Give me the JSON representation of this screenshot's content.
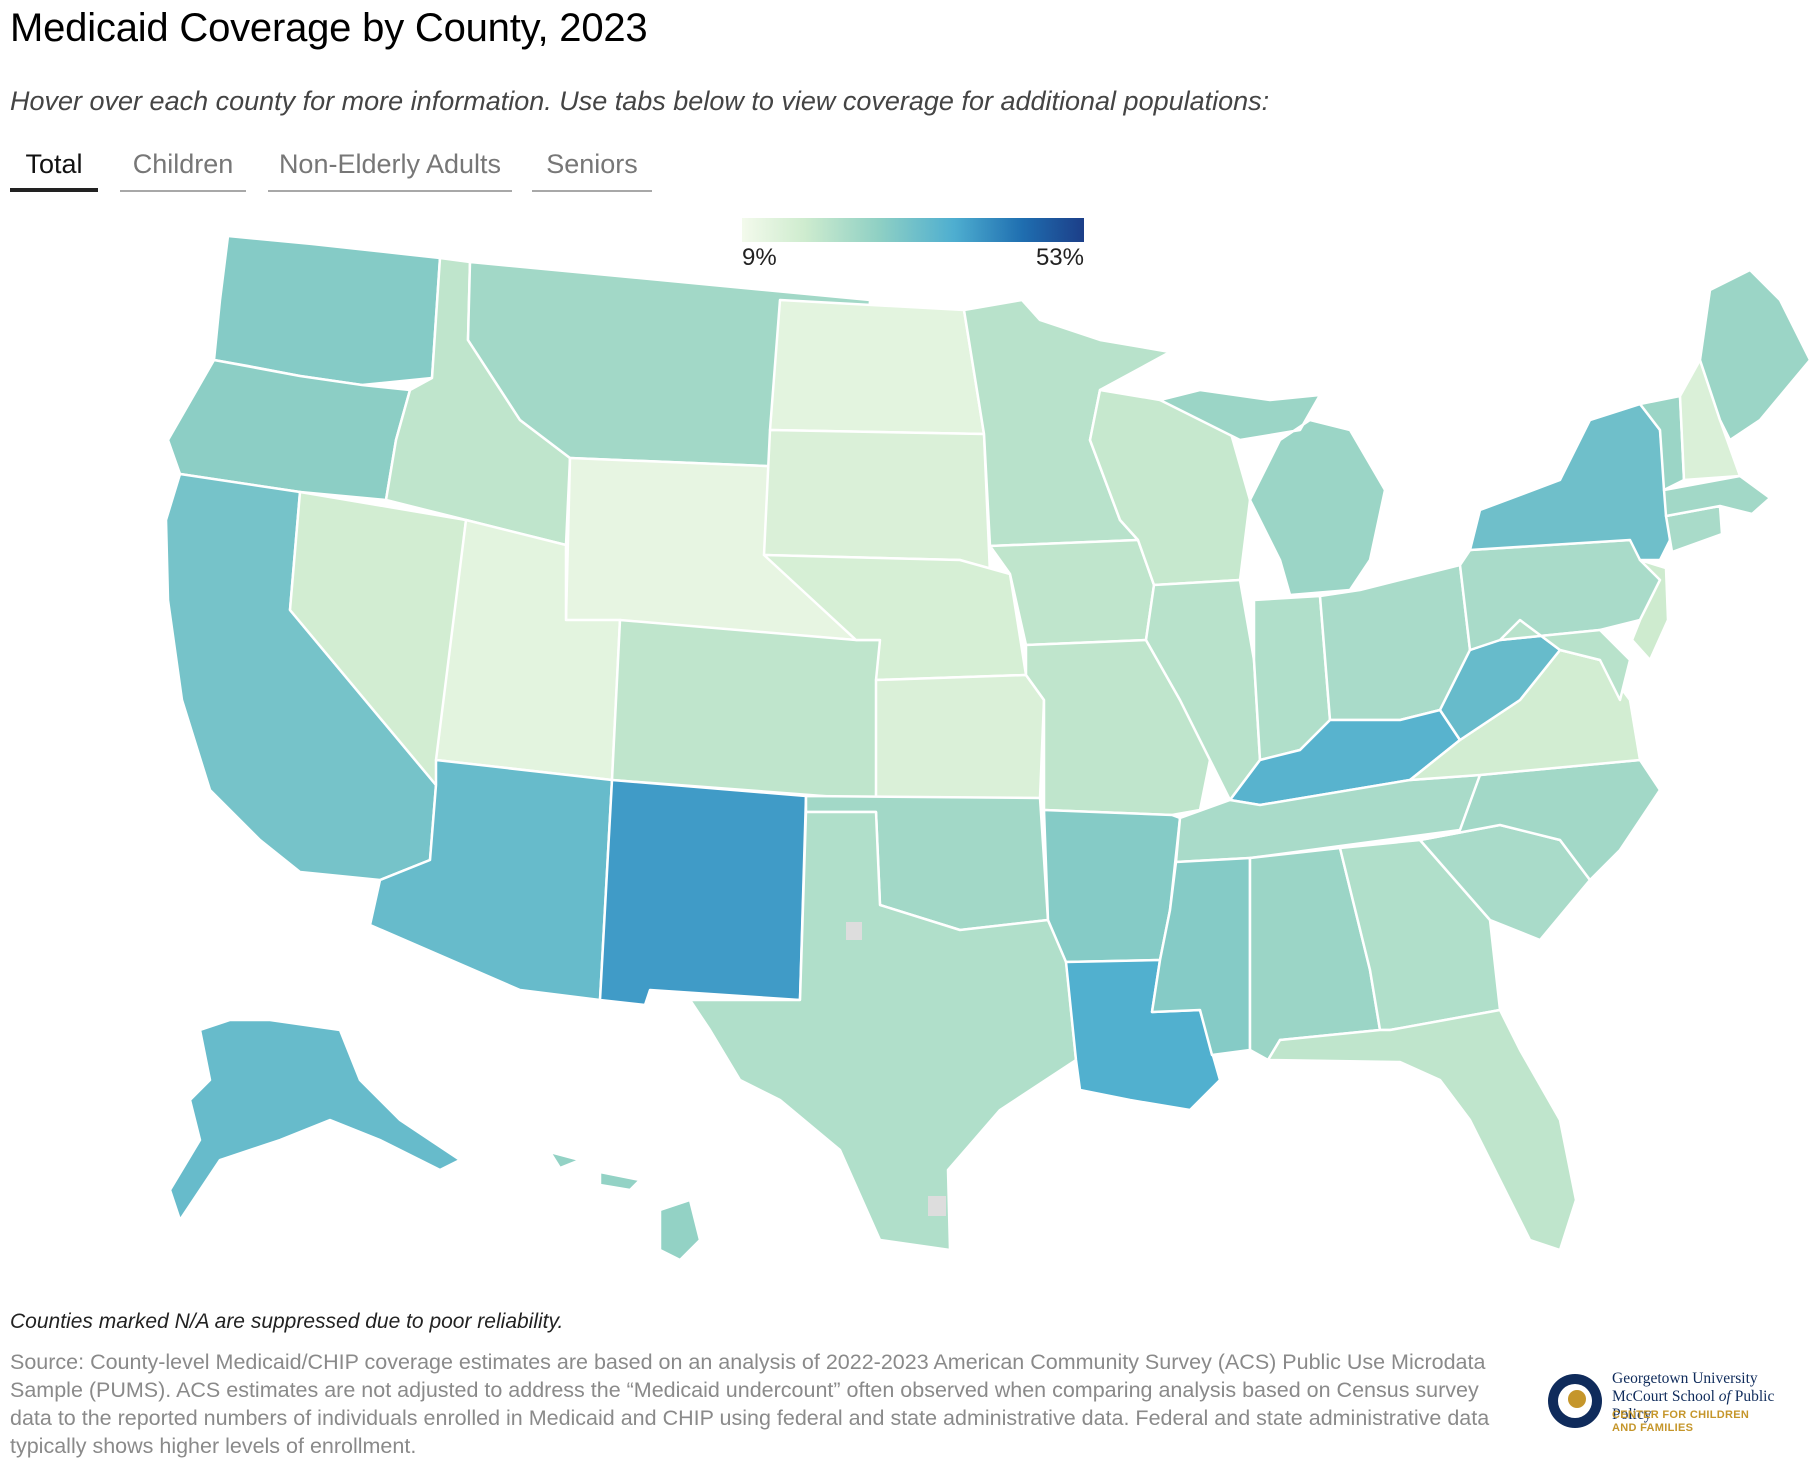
{
  "header": {
    "title": "Medicaid Coverage by County, 2023",
    "subtitle": "Hover over each county for more information. Use tabs below to view coverage for additional populations:"
  },
  "tabs": [
    {
      "label": "Total",
      "active": true
    },
    {
      "label": "Children",
      "active": false
    },
    {
      "label": "Non-Elderly Adults",
      "active": false
    },
    {
      "label": "Seniors",
      "active": false
    }
  ],
  "legend": {
    "min_label": "9%",
    "max_label": "53%",
    "min_value": 9,
    "max_value": 53,
    "colors": [
      "#f3faec",
      "#cfeccf",
      "#8fd0c4",
      "#4eaed0",
      "#1f6eb0",
      "#1c3e88"
    ]
  },
  "map": {
    "na_color": "#dddddd",
    "regions": [
      {
        "name": "Washington",
        "level": 28
      },
      {
        "name": "Oregon",
        "level": 27
      },
      {
        "name": "California",
        "level": 30
      },
      {
        "name": "Nevada",
        "level": 17
      },
      {
        "name": "Idaho",
        "level": 20
      },
      {
        "name": "Montana",
        "level": 24
      },
      {
        "name": "Wyoming",
        "level": 12
      },
      {
        "name": "Utah",
        "level": 13
      },
      {
        "name": "Arizona",
        "level": 32
      },
      {
        "name": "New Mexico",
        "level": 38
      },
      {
        "name": "Colorado",
        "level": 20
      },
      {
        "name": "North Dakota",
        "level": 13
      },
      {
        "name": "South Dakota",
        "level": 15
      },
      {
        "name": "Nebraska",
        "level": 16
      },
      {
        "name": "Kansas",
        "level": 15
      },
      {
        "name": "Oklahoma",
        "level": 24
      },
      {
        "name": "Texas",
        "level": 22
      },
      {
        "name": "Minnesota",
        "level": 21
      },
      {
        "name": "Iowa",
        "level": 20
      },
      {
        "name": "Missouri",
        "level": 20
      },
      {
        "name": "Arkansas",
        "level": 28
      },
      {
        "name": "Louisiana",
        "level": 35
      },
      {
        "name": "Wisconsin",
        "level": 19
      },
      {
        "name": "Illinois",
        "level": 21
      },
      {
        "name": "Michigan",
        "level": 25
      },
      {
        "name": "Indiana",
        "level": 22
      },
      {
        "name": "Ohio",
        "level": 23
      },
      {
        "name": "Kentucky",
        "level": 34
      },
      {
        "name": "Tennessee",
        "level": 23
      },
      {
        "name": "Mississippi",
        "level": 28
      },
      {
        "name": "Alabama",
        "level": 25
      },
      {
        "name": "Georgia",
        "level": 22
      },
      {
        "name": "Florida",
        "level": 20
      },
      {
        "name": "South Carolina",
        "level": 23
      },
      {
        "name": "North Carolina",
        "level": 24
      },
      {
        "name": "Virginia",
        "level": 17
      },
      {
        "name": "West Virginia",
        "level": 32
      },
      {
        "name": "Pennsylvania",
        "level": 23
      },
      {
        "name": "New York",
        "level": 31
      },
      {
        "name": "Vermont",
        "level": 25
      },
      {
        "name": "New Hampshire",
        "level": 15
      },
      {
        "name": "Maine",
        "level": 25
      },
      {
        "name": "Massachusetts",
        "level": 24
      },
      {
        "name": "Connecticut",
        "level": 23
      },
      {
        "name": "New Jersey",
        "level": 18
      },
      {
        "name": "Maryland",
        "level": 21
      },
      {
        "name": "Alaska",
        "level": 32
      },
      {
        "name": "Hawaii",
        "level": 26
      }
    ]
  },
  "footer": {
    "note": "Counties marked N/A are suppressed due to poor reliability.",
    "source": "Source: County-level Medicaid/CHIP coverage estimates are based on an analysis of 2022-2023 American Community Survey (ACS) Public Use Microdata Sample (PUMS). ACS estimates are not adjusted to address the “Medicaid undercount” often observed when comparing analysis based on Census survey data to the reported numbers of individuals enrolled in Medicaid and CHIP using federal and state administrative data. Federal and state administrative data typically shows higher levels of enrollment."
  },
  "logo": {
    "line1": "Georgetown University",
    "line2_main": "McCourt School",
    "line2_italic": "of",
    "line2_end": "Public Policy",
    "line3": "CENTER FOR CHILDREN",
    "line4": "AND FAMILIES"
  }
}
